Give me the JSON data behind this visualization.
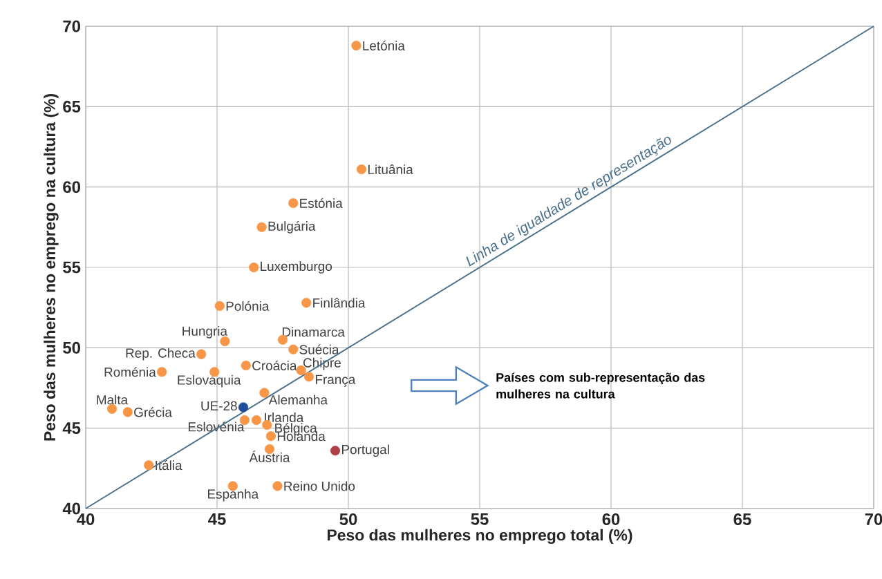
{
  "chart_data": {
    "type": "scatter",
    "xlabel": "Peso das mulheres no emprego total (%)",
    "ylabel": "Peso das mulheres no emprego na cultura (%)",
    "xlim": [
      40,
      70
    ],
    "ylim": [
      40,
      70
    ],
    "xticks": [
      40,
      45,
      50,
      55,
      60,
      65,
      70
    ],
    "yticks": [
      40,
      45,
      50,
      55,
      60,
      65,
      70
    ],
    "grid": true,
    "marker": "circle",
    "annotations": [
      "Países com sub-representação das mulheres na cultura"
    ],
    "series": [
      {
        "name": "Letónia",
        "color": "#f79646",
        "x": [
          50.3
        ],
        "values": [
          68.8
        ]
      },
      {
        "name": "Lituânia",
        "color": "#f79646",
        "x": [
          50.5
        ],
        "values": [
          61.1
        ]
      },
      {
        "name": "Estónia",
        "color": "#f79646",
        "x": [
          47.9
        ],
        "values": [
          59.0
        ]
      },
      {
        "name": "Bulgária",
        "color": "#f79646",
        "x": [
          46.7
        ],
        "values": [
          57.5
        ]
      },
      {
        "name": "Luxemburgo",
        "color": "#f79646",
        "x": [
          46.4
        ],
        "values": [
          55.0
        ]
      },
      {
        "name": "Polónia",
        "color": "#f79646",
        "x": [
          45.1
        ],
        "values": [
          52.6
        ]
      },
      {
        "name": "Finlândia",
        "color": "#f79646",
        "x": [
          48.4
        ],
        "values": [
          52.8
        ]
      },
      {
        "name": "Hungria",
        "color": "#f79646",
        "x": [
          45.3
        ],
        "values": [
          50.4
        ]
      },
      {
        "name": "Dinamarca",
        "color": "#f79646",
        "x": [
          47.5
        ],
        "values": [
          50.5
        ]
      },
      {
        "name": "Rep. Checa",
        "color": "#f79646",
        "x": [
          44.4
        ],
        "values": [
          49.6
        ]
      },
      {
        "name": "Suécia",
        "color": "#f79646",
        "x": [
          47.9
        ],
        "values": [
          49.9
        ]
      },
      {
        "name": "Roménia",
        "color": "#f79646",
        "x": [
          42.9
        ],
        "values": [
          48.5
        ]
      },
      {
        "name": "Eslováquia",
        "color": "#f79646",
        "x": [
          44.9
        ],
        "values": [
          48.5
        ]
      },
      {
        "name": "Croácia",
        "color": "#f79646",
        "x": [
          46.1
        ],
        "values": [
          48.9
        ]
      },
      {
        "name": "Chipre",
        "color": "#f79646",
        "x": [
          48.2
        ],
        "values": [
          48.6
        ]
      },
      {
        "name": "França",
        "color": "#f79646",
        "x": [
          48.5
        ],
        "values": [
          48.2
        ]
      },
      {
        "name": "Alemanha",
        "color": "#f79646",
        "x": [
          46.8
        ],
        "values": [
          47.2
        ]
      },
      {
        "name": "Malta",
        "color": "#f79646",
        "x": [
          41.0
        ],
        "values": [
          46.2
        ]
      },
      {
        "name": "Grécia",
        "color": "#f79646",
        "x": [
          41.6
        ],
        "values": [
          46.0
        ]
      },
      {
        "name": "UE-28",
        "color": "#1f4e9a",
        "x": [
          46.0
        ],
        "values": [
          46.3
        ]
      },
      {
        "name": "Irlanda",
        "color": "#f79646",
        "x": [
          46.5
        ],
        "values": [
          45.5
        ]
      },
      {
        "name": "Eslovénia",
        "color": "#f79646",
        "x": [
          46.05
        ],
        "values": [
          45.5
        ]
      },
      {
        "name": "Bélgica",
        "color": "#f79646",
        "x": [
          46.9
        ],
        "values": [
          45.2
        ]
      },
      {
        "name": "Holanda",
        "color": "#f79646",
        "x": [
          47.05
        ],
        "values": [
          44.5
        ]
      },
      {
        "name": "Áustria",
        "color": "#f79646",
        "x": [
          47.0
        ],
        "values": [
          43.7
        ]
      },
      {
        "name": "Portugal",
        "color": "#b0404a",
        "x": [
          49.5
        ],
        "values": [
          43.6
        ]
      },
      {
        "name": "Itália",
        "color": "#f79646",
        "x": [
          42.4
        ],
        "values": [
          42.7
        ]
      },
      {
        "name": "Espanha",
        "color": "#f79646",
        "x": [
          45.6
        ],
        "values": [
          41.4
        ]
      },
      {
        "name": "Reino Unido",
        "color": "#f79646",
        "x": [
          47.3
        ],
        "values": [
          41.4
        ]
      },
      {
        "name": "Linha de igualdade de representação",
        "type": "line",
        "marker": "none",
        "color": "#4a6f8a",
        "x": [
          40,
          70
        ],
        "values": [
          40,
          70
        ]
      }
    ]
  }
}
